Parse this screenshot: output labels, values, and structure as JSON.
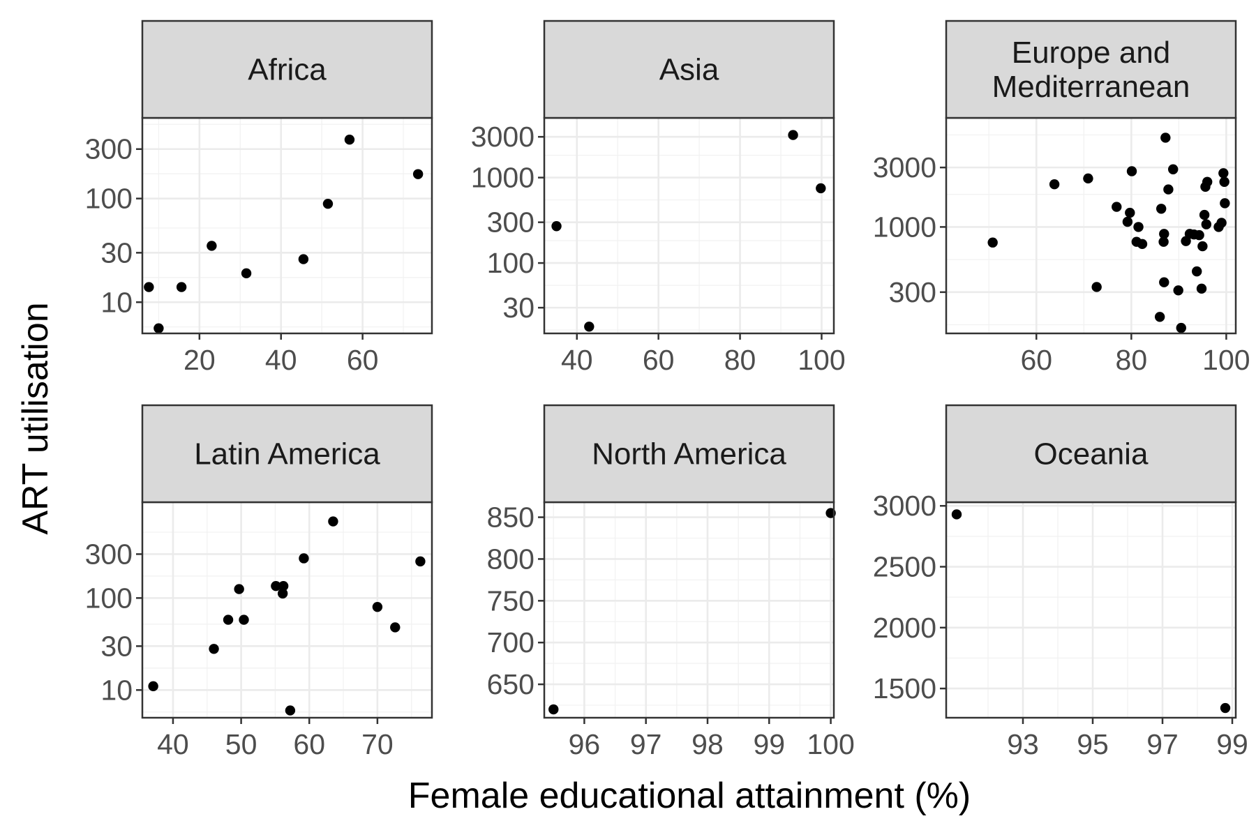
{
  "chart_data": {
    "type": "scatter",
    "xlabel": "Female educational attainment (%)",
    "ylabel": "ART utilisation",
    "facets": [
      {
        "title_lines": [
          "Africa"
        ],
        "xscale": "linear",
        "yscale": "log",
        "xlim": [
          6,
          77
        ],
        "ylim": [
          5,
          600
        ],
        "x_ticks": [
          20,
          40,
          60
        ],
        "y_ticks": [
          10,
          30,
          100,
          300
        ],
        "x_tick_labels": [
          "20",
          "40",
          "60"
        ],
        "y_tick_labels": [
          "10",
          "30",
          "100",
          "300"
        ],
        "points": [
          [
            7.6,
            14
          ],
          [
            10,
            5.6
          ],
          [
            15.6,
            14
          ],
          [
            23,
            35
          ],
          [
            31.5,
            19
          ],
          [
            45.5,
            26
          ],
          [
            51.5,
            89
          ],
          [
            56.8,
            370
          ],
          [
            73.6,
            172
          ]
        ]
      },
      {
        "title_lines": [
          "Asia"
        ],
        "xscale": "linear",
        "yscale": "log",
        "xlim": [
          32,
          103
        ],
        "ylim": [
          15,
          5000
        ],
        "x_ticks": [
          40,
          60,
          80,
          100
        ],
        "y_ticks": [
          30,
          100,
          300,
          1000,
          3000
        ],
        "x_tick_labels": [
          "40",
          "60",
          "80",
          "100"
        ],
        "y_tick_labels": [
          "30",
          "100",
          "300",
          "1000",
          "3000"
        ],
        "points": [
          [
            35,
            270
          ],
          [
            43,
            18
          ],
          [
            93,
            3150
          ],
          [
            99.8,
            750
          ]
        ]
      },
      {
        "title_lines": [
          "Europe and",
          "Mediterranean"
        ],
        "xscale": "linear",
        "yscale": "log",
        "xlim": [
          41,
          102
        ],
        "ylim": [
          140,
          7500
        ],
        "x_ticks": [
          60,
          80,
          100
        ],
        "y_ticks": [
          300,
          1000,
          3000
        ],
        "x_tick_labels": [
          "60",
          "80",
          "100"
        ],
        "y_tick_labels": [
          "300",
          "1000",
          "3000"
        ],
        "points": [
          [
            50.8,
            750
          ],
          [
            63.8,
            2200
          ],
          [
            70.9,
            2450
          ],
          [
            72.7,
            330
          ],
          [
            76.9,
            1450
          ],
          [
            79.2,
            1100
          ],
          [
            79.7,
            1300
          ],
          [
            80.1,
            2800
          ],
          [
            81.1,
            760
          ],
          [
            81.5,
            1000
          ],
          [
            82.3,
            730
          ],
          [
            86,
            190
          ],
          [
            86.3,
            1400
          ],
          [
            86.8,
            760
          ],
          [
            86.9,
            880
          ],
          [
            86.9,
            360
          ],
          [
            87.2,
            5200
          ],
          [
            87.8,
            2000
          ],
          [
            88.8,
            2900
          ],
          [
            89.9,
            310
          ],
          [
            90.5,
            155
          ],
          [
            91.5,
            770
          ],
          [
            92.3,
            880
          ],
          [
            93.2,
            870
          ],
          [
            93.8,
            440
          ],
          [
            94.3,
            860
          ],
          [
            94.8,
            320
          ],
          [
            95,
            700
          ],
          [
            95.4,
            1250
          ],
          [
            95.6,
            2100
          ],
          [
            95.8,
            1050
          ],
          [
            96,
            2300
          ],
          [
            98.4,
            1000
          ],
          [
            99,
            1080
          ],
          [
            99.4,
            2700
          ],
          [
            99.6,
            2300
          ],
          [
            99.7,
            1550
          ]
        ]
      },
      {
        "title_lines": [
          "Latin America"
        ],
        "xscale": "linear",
        "yscale": "log",
        "xlim": [
          35.5,
          78
        ],
        "ylim": [
          5,
          1100
        ],
        "x_ticks": [
          40,
          50,
          60,
          70
        ],
        "y_ticks": [
          10,
          30,
          100,
          300
        ],
        "x_tick_labels": [
          "40",
          "50",
          "60",
          "70"
        ],
        "y_tick_labels": [
          "10",
          "30",
          "100",
          "300"
        ],
        "points": [
          [
            37.1,
            11
          ],
          [
            46,
            28
          ],
          [
            48.1,
            58
          ],
          [
            49.7,
            125
          ],
          [
            50.4,
            58
          ],
          [
            55.1,
            135
          ],
          [
            56.1,
            112
          ],
          [
            56.2,
            135
          ],
          [
            57.2,
            6
          ],
          [
            59.2,
            270
          ],
          [
            63.5,
            680
          ],
          [
            70,
            80
          ],
          [
            72.6,
            48
          ],
          [
            76.3,
            250
          ]
        ]
      },
      {
        "title_lines": [
          "North America"
        ],
        "xscale": "linear",
        "yscale": "linear",
        "xlim": [
          95.35,
          100.05
        ],
        "ylim": [
          610,
          868
        ],
        "x_ticks": [
          96,
          97,
          98,
          99,
          100
        ],
        "y_ticks": [
          650,
          700,
          750,
          800,
          850
        ],
        "x_tick_labels": [
          "96",
          "97",
          "98",
          "99",
          "100"
        ],
        "y_tick_labels": [
          "650",
          "700",
          "750",
          "800",
          "850"
        ],
        "points": [
          [
            95.5,
            620
          ],
          [
            100,
            855
          ]
        ]
      },
      {
        "title_lines": [
          "Oceania"
        ],
        "xscale": "linear",
        "yscale": "linear",
        "xlim": [
          90.8,
          99.1
        ],
        "ylim": [
          1260,
          3030
        ],
        "x_ticks": [
          93,
          95,
          97,
          99
        ],
        "y_ticks": [
          1500,
          2000,
          2500,
          3000
        ],
        "x_tick_labels": [
          "93",
          "95",
          "97",
          "99"
        ],
        "y_tick_labels": [
          "1500",
          "2000",
          "2500",
          "3000"
        ],
        "points": [
          [
            91.1,
            2930
          ],
          [
            98.8,
            1340
          ]
        ]
      }
    ]
  }
}
